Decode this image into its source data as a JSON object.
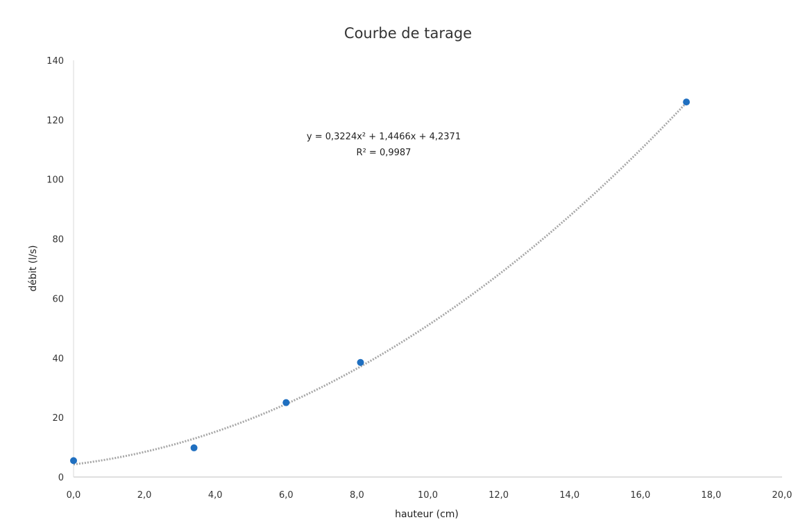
{
  "chart_data": {
    "type": "scatter",
    "title": "Courbe de tarage",
    "xlabel": "hauteur (cm)",
    "ylabel": "débit (l/s)",
    "xlim": [
      0,
      20
    ],
    "ylim": [
      0,
      140
    ],
    "x_ticks": [
      "0,0",
      "2,0",
      "4,0",
      "6,0",
      "8,0",
      "10,0",
      "12,0",
      "14,0",
      "16,0",
      "18,0",
      "20,0"
    ],
    "y_ticks": [
      "0",
      "20",
      "40",
      "60",
      "80",
      "100",
      "120",
      "140"
    ],
    "grid": false,
    "legend": "none",
    "series": [
      {
        "x": [
          0.0,
          3.4,
          6.0,
          8.1,
          17.3
        ],
        "y": [
          5.5,
          9.8,
          25.0,
          38.5,
          126.0
        ],
        "color": "#1f6fc0"
      }
    ],
    "trendline": {
      "type": "polynomial",
      "order": 2,
      "coefficients": [
        0.3224,
        1.4466,
        4.2371
      ],
      "x_range": [
        0,
        17.3
      ],
      "color": "#a6a6a6",
      "style": "dotted",
      "equation": "y = 0,3224x² + 1,4466x + 4,2371",
      "r_squared": "R² = 0,9987"
    }
  }
}
